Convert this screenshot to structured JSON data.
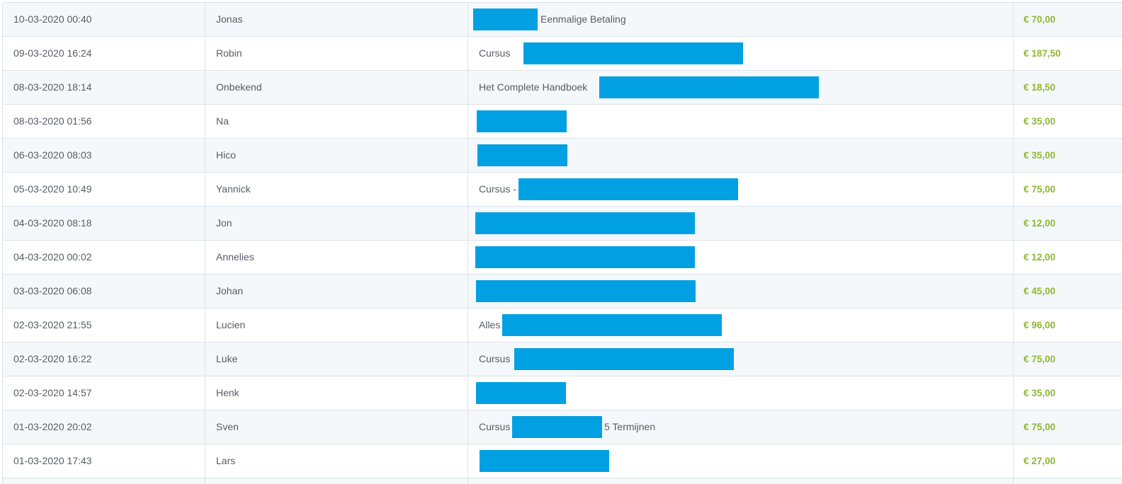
{
  "colors": {
    "redaction": "#00a0e3",
    "amount": "#8fb832",
    "row_alt": "#f5f8fa",
    "border": "#dde3e8"
  },
  "rows": [
    {
      "date": "10-03-2020 00:40",
      "name": "Jonas",
      "product_before": "",
      "product_after": "Eenmalige Betaling",
      "amount": "€ 70,00"
    },
    {
      "date": "09-03-2020 16:24",
      "name": "Robin",
      "product_before": "Cursus",
      "product_after": "",
      "amount": "€ 187,50"
    },
    {
      "date": "08-03-2020 18:14",
      "name": "Onbekend",
      "product_before": "Het Complete Handboek",
      "product_after": "",
      "amount": "€ 18,50"
    },
    {
      "date": "08-03-2020 01:56",
      "name": "Na",
      "product_before": "",
      "product_after": "",
      "amount": "€ 35,00"
    },
    {
      "date": "06-03-2020 08:03",
      "name": "Hico",
      "product_before": "",
      "product_after": "",
      "amount": "€ 35,00"
    },
    {
      "date": "05-03-2020 10:49",
      "name": "Yannick",
      "product_before": "Cursus -",
      "product_after": "",
      "amount": "€ 75,00"
    },
    {
      "date": "04-03-2020 08:18",
      "name": "Jon",
      "product_before": "",
      "product_after": "",
      "amount": "€ 12,00"
    },
    {
      "date": "04-03-2020 00:02",
      "name": "Annelies",
      "product_before": "",
      "product_after": "",
      "amount": "€ 12,00"
    },
    {
      "date": "03-03-2020 06:08",
      "name": "Johan",
      "product_before": "",
      "product_after": "",
      "amount": "€ 45,00"
    },
    {
      "date": "02-03-2020 21:55",
      "name": "Lucien",
      "product_before": "Alles",
      "product_after": "",
      "amount": "€ 96,00"
    },
    {
      "date": "02-03-2020 16:22",
      "name": "Luke",
      "product_before": "Cursus",
      "product_after": "",
      "amount": "€ 75,00"
    },
    {
      "date": "02-03-2020 14:57",
      "name": "Henk",
      "product_before": "",
      "product_after": "",
      "amount": "€ 35,00"
    },
    {
      "date": "01-03-2020 20:02",
      "name": "Sven",
      "product_before": "Cursus",
      "product_after": "5 Termijnen",
      "amount": "€ 75,00"
    },
    {
      "date": "01-03-2020 17:43",
      "name": "Lars",
      "product_before": "",
      "product_after": "",
      "amount": "€ 27,00"
    }
  ]
}
